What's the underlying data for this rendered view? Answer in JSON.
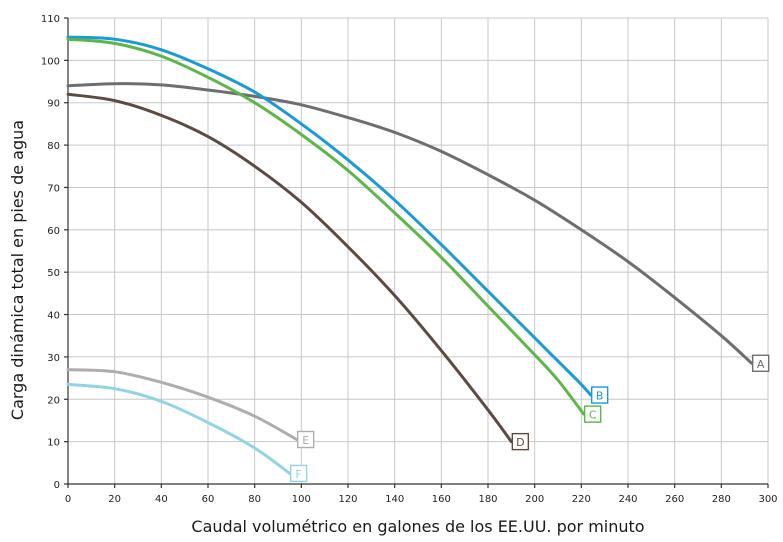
{
  "chart_data": {
    "type": "line",
    "xlabel": "Caudal volumétrico en galones de los EE.UU. por minuto",
    "ylabel": "Carga dinámica total en pies de agua",
    "xlim": [
      0,
      300
    ],
    "ylim": [
      0,
      110
    ],
    "xticks": [
      0,
      20,
      40,
      60,
      80,
      100,
      120,
      140,
      160,
      180,
      200,
      220,
      240,
      260,
      280,
      300
    ],
    "yticks": [
      0,
      10,
      20,
      30,
      40,
      50,
      60,
      70,
      80,
      90,
      100,
      110
    ],
    "grid": true,
    "series": [
      {
        "name": "A",
        "color": "#6d6e71",
        "x": [
          0,
          20,
          40,
          60,
          80,
          100,
          120,
          140,
          160,
          180,
          200,
          220,
          240,
          260,
          280,
          293
        ],
        "y": [
          94,
          94.5,
          94.2,
          93,
          91.5,
          89.5,
          86.5,
          83,
          78.5,
          73,
          67,
          60,
          52.5,
          44,
          35,
          28.5
        ]
      },
      {
        "name": "B",
        "color": "#1a9ad6",
        "x": [
          0,
          20,
          40,
          60,
          80,
          100,
          120,
          140,
          160,
          180,
          200,
          210,
          220,
          224
        ],
        "y": [
          105.5,
          105,
          102.5,
          98,
          92.5,
          85,
          76.5,
          67,
          56.5,
          45.5,
          34.5,
          29,
          23.5,
          21
        ]
      },
      {
        "name": "C",
        "color": "#5cb64a",
        "x": [
          0,
          20,
          40,
          60,
          80,
          100,
          120,
          140,
          160,
          180,
          200,
          210,
          221
        ],
        "y": [
          105,
          104,
          101,
          96,
          90,
          82.5,
          74,
          64,
          53.5,
          42,
          30.5,
          24.5,
          16.5
        ]
      },
      {
        "name": "D",
        "color": "#5b4b42",
        "x": [
          0,
          20,
          40,
          60,
          80,
          100,
          120,
          140,
          160,
          180,
          190
        ],
        "y": [
          92,
          90.5,
          87,
          82,
          75,
          66.5,
          56,
          44.5,
          31.5,
          17.5,
          10
        ]
      },
      {
        "name": "E",
        "color": "#adadad",
        "x": [
          0,
          20,
          40,
          60,
          80,
          98
        ],
        "y": [
          27,
          26.5,
          24,
          20.5,
          16,
          10.5
        ]
      },
      {
        "name": "F",
        "color": "#91d4e3",
        "x": [
          0,
          20,
          40,
          60,
          80,
          95
        ],
        "y": [
          23.5,
          22.5,
          19.5,
          14.5,
          8.5,
          2.5
        ]
      }
    ]
  }
}
